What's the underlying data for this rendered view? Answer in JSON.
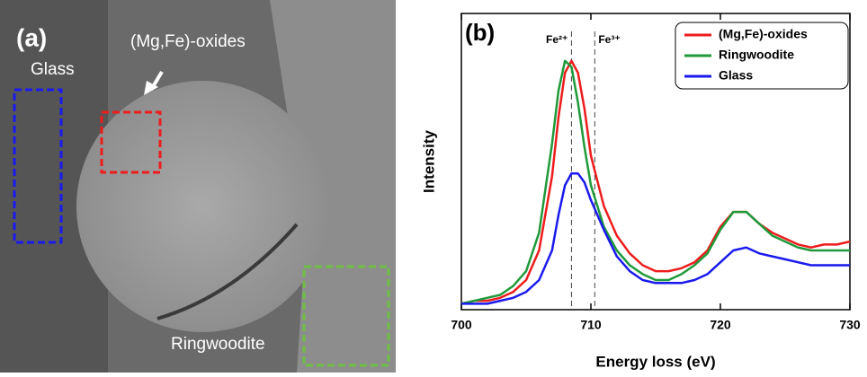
{
  "image_panel": {
    "label": "(a)",
    "annotations": [
      {
        "text": "(Mg,Fe)-oxides",
        "color": "#ffffff"
      },
      {
        "text": "Glass",
        "color": "#ffffff"
      },
      {
        "text": "Ringwoodite",
        "color": "#ffffff"
      }
    ]
  },
  "chart_data": {
    "type": "line",
    "panel_label": "(b)",
    "x_label": "Energy loss (eV)",
    "y_label": "Intensity",
    "xlim": [
      700,
      730
    ],
    "xticks": [
      700,
      710,
      720,
      730
    ],
    "ylim": [
      0,
      1
    ],
    "legend": "upper right",
    "vlines": [
      {
        "x": 708.5,
        "label": "Fe²⁺"
      },
      {
        "x": 710.3,
        "label": "Fe³⁺"
      }
    ],
    "x": [
      700,
      701,
      702,
      703,
      704,
      705,
      706,
      707,
      707.5,
      708,
      708.5,
      709,
      709.5,
      710,
      711,
      712,
      713,
      714,
      715,
      716,
      717,
      718,
      719,
      720,
      721,
      722,
      723,
      724,
      725,
      726,
      727,
      728,
      729,
      730
    ],
    "series": [
      {
        "name": "(Mg,Fe)-oxides",
        "color": "#ee1c1c",
        "values": [
          0.02,
          0.03,
          0.03,
          0.04,
          0.06,
          0.1,
          0.2,
          0.45,
          0.65,
          0.8,
          0.84,
          0.8,
          0.68,
          0.52,
          0.35,
          0.25,
          0.19,
          0.15,
          0.13,
          0.13,
          0.14,
          0.16,
          0.2,
          0.28,
          0.33,
          0.33,
          0.29,
          0.26,
          0.24,
          0.22,
          0.21,
          0.22,
          0.22,
          0.23
        ]
      },
      {
        "name": "Ringwoodite",
        "color": "#1f9a3a",
        "values": [
          0.02,
          0.03,
          0.04,
          0.05,
          0.08,
          0.13,
          0.26,
          0.56,
          0.74,
          0.84,
          0.82,
          0.7,
          0.55,
          0.42,
          0.28,
          0.2,
          0.15,
          0.12,
          0.1,
          0.1,
          0.12,
          0.15,
          0.19,
          0.27,
          0.33,
          0.33,
          0.29,
          0.25,
          0.23,
          0.21,
          0.2,
          0.2,
          0.2,
          0.2
        ]
      },
      {
        "name": "Glass",
        "color": "#1a1aee",
        "values": [
          0.02,
          0.02,
          0.02,
          0.03,
          0.04,
          0.06,
          0.1,
          0.2,
          0.32,
          0.42,
          0.46,
          0.46,
          0.43,
          0.37,
          0.27,
          0.18,
          0.13,
          0.1,
          0.09,
          0.09,
          0.09,
          0.1,
          0.12,
          0.16,
          0.2,
          0.21,
          0.19,
          0.18,
          0.17,
          0.16,
          0.15,
          0.15,
          0.15,
          0.15
        ]
      }
    ]
  }
}
